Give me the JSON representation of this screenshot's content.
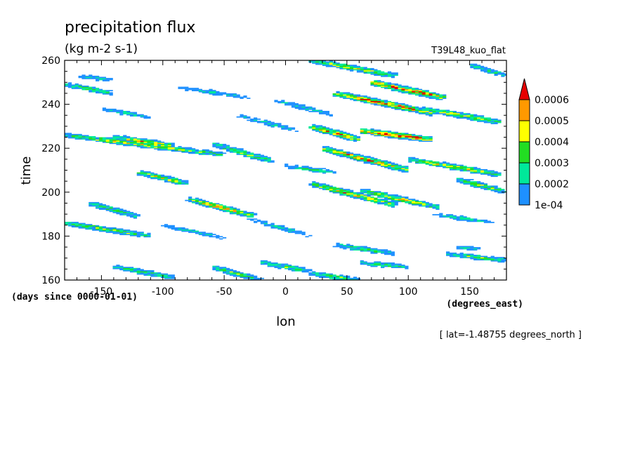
{
  "chart_data": {
    "type": "heatmap",
    "title": "precipitation flux",
    "subtitle": "(kg m-2 s-1)",
    "run_label": "T39L48_kuo_flat",
    "xlabel": "lon",
    "x_units": "(degrees_east)",
    "ylabel": "time",
    "y_units": "(days since 0000-01-01)",
    "footnote": "[ lat=-1.48755 degrees_north ]",
    "xlim": [
      -180,
      180
    ],
    "ylim": [
      160,
      260
    ],
    "x_ticks": [
      -150,
      -100,
      -50,
      0,
      50,
      100,
      150
    ],
    "x_tick_labels": [
      "-150",
      "-100",
      "-50",
      "0",
      "50",
      "100",
      "150"
    ],
    "y_ticks": [
      160,
      180,
      200,
      220,
      240,
      260
    ],
    "y_tick_labels": [
      "160",
      "180",
      "200",
      "220",
      "240",
      "260"
    ],
    "colorbar": {
      "levels": [
        0.0001,
        0.0002,
        0.0003,
        0.0004,
        0.0005,
        0.0006
      ],
      "labels": [
        "1e-04",
        "0.0002",
        "0.0003",
        "0.0004",
        "0.0005",
        "0.0006"
      ],
      "colors": [
        "#1e90ff",
        "#00e89a",
        "#22dd22",
        "#ffff00",
        "#ff9900",
        "#e60000"
      ],
      "extend": "max"
    },
    "bands": [
      {
        "lon0": -180,
        "t0": 186,
        "lon1": -110,
        "t1": 180,
        "peak": 0.00035
      },
      {
        "lon0": -160,
        "t0": 195,
        "lon1": -120,
        "t1": 189,
        "peak": 0.0003
      },
      {
        "lon0": -180,
        "t0": 226,
        "lon1": -50,
        "t1": 217,
        "peak": 0.0004
      },
      {
        "lon0": -140,
        "t0": 225,
        "lon1": -90,
        "t1": 221,
        "peak": 0.00045
      },
      {
        "lon0": -60,
        "t0": 222,
        "lon1": -10,
        "t1": 214,
        "peak": 0.00035
      },
      {
        "lon0": -120,
        "t0": 209,
        "lon1": -80,
        "t1": 204,
        "peak": 0.0004
      },
      {
        "lon0": -80,
        "t0": 197,
        "lon1": -25,
        "t1": 189,
        "peak": 0.00045
      },
      {
        "lon0": -180,
        "t0": 249,
        "lon1": -140,
        "t1": 245,
        "peak": 0.0003
      },
      {
        "lon0": -170,
        "t0": 253,
        "lon1": -140,
        "t1": 251,
        "peak": 0.0002
      },
      {
        "lon0": -140,
        "t0": 166,
        "lon1": -90,
        "t1": 161,
        "peak": 0.0003
      },
      {
        "lon0": -60,
        "t0": 166,
        "lon1": -20,
        "t1": 160,
        "peak": 0.0003
      },
      {
        "lon0": 20,
        "t0": 230,
        "lon1": 60,
        "t1": 224,
        "peak": 0.0005
      },
      {
        "lon0": 20,
        "t0": 260,
        "lon1": 90,
        "t1": 253,
        "peak": 0.0004
      },
      {
        "lon0": 40,
        "t0": 245,
        "lon1": 120,
        "t1": 236,
        "peak": 0.00055
      },
      {
        "lon0": 70,
        "t0": 250,
        "lon1": 130,
        "t1": 243,
        "peak": 0.0006
      },
      {
        "lon0": 110,
        "t0": 238,
        "lon1": 175,
        "t1": 232,
        "peak": 0.0004
      },
      {
        "lon0": 60,
        "t0": 228,
        "lon1": 120,
        "t1": 224,
        "peak": 0.0006
      },
      {
        "lon0": 30,
        "t0": 220,
        "lon1": 100,
        "t1": 210,
        "peak": 0.0005
      },
      {
        "lon0": 100,
        "t0": 215,
        "lon1": 175,
        "t1": 208,
        "peak": 0.0004
      },
      {
        "lon0": 20,
        "t0": 204,
        "lon1": 90,
        "t1": 194,
        "peak": 0.00045
      },
      {
        "lon0": 60,
        "t0": 201,
        "lon1": 125,
        "t1": 193,
        "peak": 0.0004
      },
      {
        "lon0": 140,
        "t0": 206,
        "lon1": 180,
        "t1": 200,
        "peak": 0.00035
      },
      {
        "lon0": 120,
        "t0": 190,
        "lon1": 170,
        "t1": 186,
        "peak": 0.0002
      },
      {
        "lon0": 40,
        "t0": 176,
        "lon1": 90,
        "t1": 172,
        "peak": 0.0003
      },
      {
        "lon0": 60,
        "t0": 168,
        "lon1": 100,
        "t1": 166,
        "peak": 0.0003
      },
      {
        "lon0": 130,
        "t0": 172,
        "lon1": 180,
        "t1": 169,
        "peak": 0.0003
      },
      {
        "lon0": 140,
        "t0": 175,
        "lon1": 160,
        "t1": 174,
        "peak": 0.0002
      },
      {
        "lon0": -20,
        "t0": 168,
        "lon1": 20,
        "t1": 164,
        "peak": 0.0003
      },
      {
        "lon0": 20,
        "t0": 163,
        "lon1": 60,
        "t1": 160,
        "peak": 0.0003
      },
      {
        "lon0": 150,
        "t0": 258,
        "lon1": 180,
        "t1": 253,
        "peak": 0.00025
      },
      {
        "lon0": -90,
        "t0": 248,
        "lon1": -30,
        "t1": 243,
        "peak": 0.0002
      },
      {
        "lon0": -10,
        "t0": 242,
        "lon1": 40,
        "t1": 235,
        "peak": 0.0002
      },
      {
        "lon0": -40,
        "t0": 235,
        "lon1": 10,
        "t1": 228,
        "peak": 0.0002
      },
      {
        "lon0": 0,
        "t0": 212,
        "lon1": 40,
        "t1": 209,
        "peak": 0.00025
      },
      {
        "lon0": -100,
        "t0": 185,
        "lon1": -50,
        "t1": 179,
        "peak": 0.0002
      },
      {
        "lon0": -30,
        "t0": 188,
        "lon1": 20,
        "t1": 180,
        "peak": 0.0002
      },
      {
        "lon0": -150,
        "t0": 238,
        "lon1": -110,
        "t1": 234,
        "peak": 0.0002
      }
    ]
  }
}
